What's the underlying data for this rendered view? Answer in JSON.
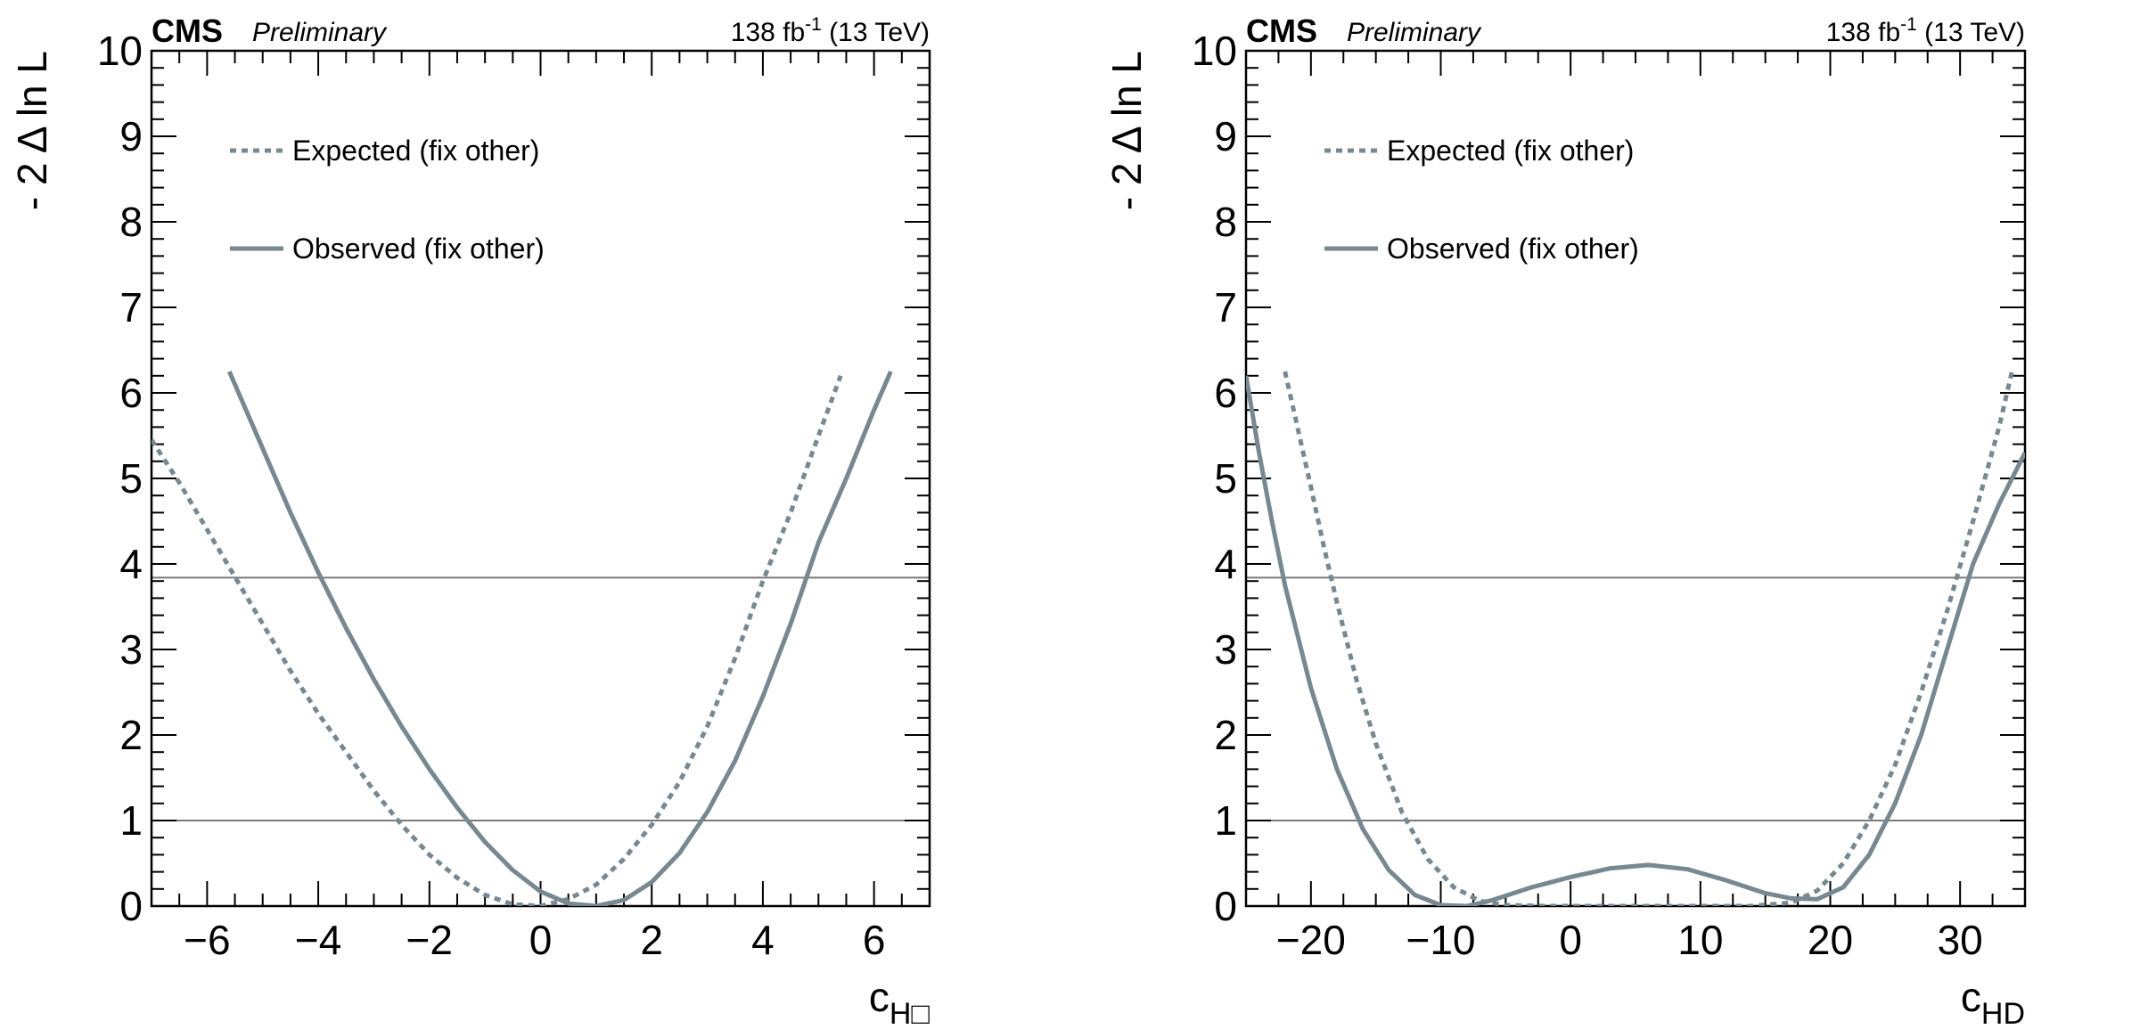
{
  "chart_data": [
    {
      "type": "line",
      "title": "CMS Preliminary",
      "experiment": "CMS",
      "status": "Preliminary",
      "lumi_main": "138 fb",
      "lumi_exp": "-1",
      "lumi_energy": "(13 TeV)",
      "ylabel": "- 2 Δ ln L",
      "xlabel_main": "c",
      "xlabel_sub": "H",
      "xlabel_box": "□",
      "xlim": [
        -7,
        7
      ],
      "ylim": [
        0,
        10
      ],
      "xticks": [
        -6,
        -4,
        -2,
        0,
        2,
        4,
        6
      ],
      "xtick_labels": [
        "−6",
        "−4",
        "−2",
        "0",
        "2",
        "4",
        "6"
      ],
      "yticks": [
        0,
        1,
        2,
        3,
        4,
        5,
        6,
        7,
        8,
        9,
        10
      ],
      "ytick_labels": [
        "0",
        "1",
        "2",
        "3",
        "4",
        "5",
        "6",
        "7",
        "8",
        "9",
        "10"
      ],
      "reference_lines": [
        1,
        3.84
      ],
      "legend": [
        "Expected (fix other)",
        "Observed (fix other)"
      ],
      "series": [
        {
          "name": "Expected (fix other)",
          "style": "dashed",
          "x": [
            -7.0,
            -6.5,
            -6.0,
            -5.5,
            -5.0,
            -4.5,
            -4.0,
            -3.5,
            -3.0,
            -2.5,
            -2.0,
            -1.5,
            -1.0,
            -0.5,
            0.0,
            0.5,
            1.0,
            1.5,
            2.0,
            2.5,
            3.0,
            3.5,
            4.0,
            4.5,
            5.0,
            5.4
          ],
          "y": [
            5.45,
            4.95,
            4.4,
            3.85,
            3.3,
            2.75,
            2.25,
            1.8,
            1.35,
            0.95,
            0.6,
            0.33,
            0.13,
            0.02,
            0.0,
            0.08,
            0.25,
            0.55,
            0.95,
            1.45,
            2.1,
            2.9,
            3.8,
            4.6,
            5.5,
            6.2
          ]
        },
        {
          "name": "Observed (fix other)",
          "style": "solid",
          "x": [
            -5.6,
            -5.0,
            -4.5,
            -4.0,
            -3.5,
            -3.0,
            -2.5,
            -2.0,
            -1.5,
            -1.0,
            -0.5,
            0.0,
            0.5,
            1.0,
            1.5,
            2.0,
            2.5,
            3.0,
            3.5,
            4.0,
            4.5,
            5.0,
            5.5,
            6.0,
            6.3
          ],
          "y": [
            6.25,
            5.35,
            4.6,
            3.9,
            3.25,
            2.65,
            2.1,
            1.6,
            1.15,
            0.75,
            0.42,
            0.17,
            0.03,
            0.0,
            0.07,
            0.28,
            0.62,
            1.1,
            1.7,
            2.45,
            3.3,
            4.25,
            5.0,
            5.8,
            6.25
          ]
        }
      ]
    },
    {
      "type": "line",
      "title": "CMS Preliminary",
      "experiment": "CMS",
      "status": "Preliminary",
      "lumi_main": "138 fb",
      "lumi_exp": "-1",
      "lumi_energy": "(13 TeV)",
      "ylabel": "- 2 Δ ln L",
      "xlabel_main": "c",
      "xlabel_sub": "HD",
      "xlim": [
        -25,
        35
      ],
      "ylim": [
        0,
        10
      ],
      "xticks": [
        -20,
        -10,
        0,
        10,
        20,
        30
      ],
      "xtick_labels": [
        "−20",
        "−10",
        "0",
        "10",
        "20",
        "30"
      ],
      "yticks": [
        0,
        1,
        2,
        3,
        4,
        5,
        6,
        7,
        8,
        9,
        10
      ],
      "ytick_labels": [
        "0",
        "1",
        "2",
        "3",
        "4",
        "5",
        "6",
        "7",
        "8",
        "9",
        "10"
      ],
      "reference_lines": [
        1,
        3.84
      ],
      "legend": [
        "Expected (fix other)",
        "Observed (fix other)"
      ],
      "series": [
        {
          "name": "Expected (fix other)",
          "style": "dashed",
          "x": [
            -22.0,
            -20.0,
            -19.0,
            -18.0,
            -16.5,
            -15.0,
            -13.0,
            -11.0,
            -9.0,
            -7.0,
            -5.0,
            -2.0,
            2.0,
            6.0,
            10.0,
            14.0,
            17.0,
            19.0,
            21.0,
            23.0,
            25.0,
            27.0,
            29.0,
            31.0,
            33.0,
            34.0
          ],
          "y": [
            6.25,
            4.9,
            4.2,
            3.55,
            2.65,
            1.9,
            1.1,
            0.55,
            0.22,
            0.06,
            0.01,
            0.0,
            0.0,
            0.0,
            0.0,
            0.0,
            0.04,
            0.18,
            0.5,
            1.0,
            1.65,
            2.5,
            3.45,
            4.5,
            5.6,
            6.25
          ]
        },
        {
          "name": "Observed (fix other)",
          "style": "solid",
          "x": [
            -25.0,
            -24.0,
            -23.0,
            -22.0,
            -20.0,
            -18.0,
            -16.0,
            -14.0,
            -12.0,
            -10.0,
            -8.0,
            -6.0,
            -3.0,
            0.0,
            3.0,
            6.0,
            9.0,
            12.0,
            15.0,
            17.0,
            19.0,
            21.0,
            23.0,
            25.0,
            27.0,
            29.0,
            31.0,
            33.0,
            35.0
          ],
          "y": [
            6.2,
            5.3,
            4.5,
            3.75,
            2.55,
            1.6,
            0.9,
            0.42,
            0.13,
            0.01,
            0.0,
            0.07,
            0.22,
            0.34,
            0.44,
            0.48,
            0.43,
            0.3,
            0.15,
            0.09,
            0.08,
            0.22,
            0.6,
            1.2,
            2.0,
            3.0,
            4.0,
            4.7,
            5.3
          ]
        }
      ]
    }
  ]
}
